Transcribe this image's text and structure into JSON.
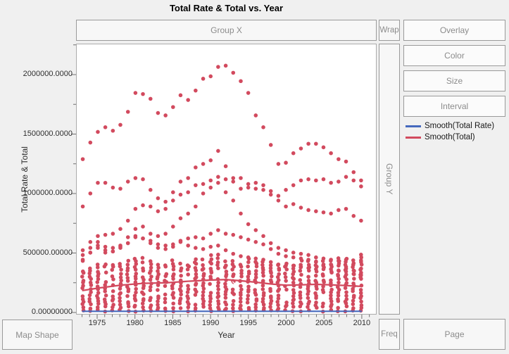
{
  "title": "Total Rate & Total vs. Year",
  "drop_zones": {
    "group_x": "Group X",
    "wrap": "Wrap",
    "group_y": "Group Y",
    "map_shape": "Map Shape",
    "freq": "Freq",
    "page": "Page"
  },
  "buttons": {
    "overlay": "Overlay",
    "color": "Color",
    "size": "Size",
    "interval": "Interval"
  },
  "legend": [
    {
      "label": "Smooth(Total Rate)",
      "color": "#4569bd"
    },
    {
      "label": "Smooth(Total)",
      "color": "#d24a5e"
    }
  ],
  "axes": {
    "x": {
      "label": "Year",
      "major_ticks": [
        1975,
        1980,
        1985,
        1990,
        1995,
        2000,
        2005,
        2010
      ],
      "minor_step": 1,
      "range": [
        1972.2,
        2012.0
      ]
    },
    "y": {
      "label": "Total Rate & Total",
      "tick_labels": [
        "0.00000000",
        "500000.00000",
        "1000000.0000",
        "1500000.0000",
        "2000000.0000"
      ],
      "tick_values": [
        0,
        500000,
        1000000,
        1500000,
        2000000
      ],
      "minor_values": [
        250000,
        750000,
        1250000,
        1750000,
        2250000
      ],
      "range": [
        0,
        2260000
      ]
    }
  },
  "chart_data": {
    "type": "scatter",
    "title": "Total Rate & Total vs. Year",
    "xlabel": "Year",
    "ylabel": "Total Rate & Total",
    "xlim": [
      1972.2,
      2012.0
    ],
    "ylim": [
      0,
      2260000
    ],
    "grid": false,
    "point_color": "#d24a5e",
    "point_radius": 2.8,
    "x": [
      1973,
      1974,
      1975,
      1976,
      1977,
      1978,
      1979,
      1980,
      1981,
      1982,
      1983,
      1984,
      1985,
      1986,
      1987,
      1988,
      1989,
      1990,
      1991,
      1992,
      1993,
      1994,
      1995,
      1996,
      1997,
      1998,
      1999,
      2000,
      2001,
      2002,
      2003,
      2004,
      2005,
      2006,
      2007,
      2008,
      2009,
      2010
    ],
    "series": [
      {
        "name": "trajectory-1",
        "values": [
          1290000,
          1430000,
          1520000,
          1560000,
          1530000,
          1580000,
          1690000,
          1850000,
          1840000,
          1800000,
          1680000,
          1660000,
          1730000,
          1830000,
          1790000,
          1870000,
          1970000,
          1990000,
          2070000,
          2080000,
          2020000,
          1950000,
          1850000,
          1660000,
          1560000,
          1410000,
          1250000,
          1260000,
          1340000,
          1380000,
          1420000,
          1420000,
          1390000,
          1340000,
          1290000,
          1270000,
          1180000,
          1060000
        ]
      },
      {
        "name": "trajectory-2",
        "values": [
          520000,
          590000,
          640000,
          650000,
          660000,
          700000,
          770000,
          870000,
          900000,
          890000,
          850000,
          870000,
          1010000,
          1100000,
          1130000,
          1220000,
          1250000,
          1280000,
          1360000,
          1230000,
          1130000,
          1040000,
          1050000,
          1040000,
          1030000,
          990000,
          980000,
          1030000,
          1070000,
          1110000,
          1120000,
          1110000,
          1120000,
          1090000,
          1100000,
          1140000,
          1110000,
          1110000
        ]
      },
      {
        "name": "trajectory-3",
        "values": [
          890000,
          1000000,
          1090000,
          1090000,
          1050000,
          1040000,
          1100000,
          1130000,
          1120000,
          1030000,
          960000,
          930000,
          940000,
          990000,
          1010000,
          1070000,
          1080000,
          1110000,
          1090000,
          1010000,
          940000,
          830000,
          740000,
          690000,
          640000,
          580000,
          540000,
          520000,
          500000,
          490000,
          480000,
          460000,
          450000,
          440000,
          430000,
          440000,
          410000,
          420000
        ]
      },
      {
        "name": "trajectory-4",
        "values": [
          430000,
          500000,
          540000,
          500000,
          510000,
          560000,
          630000,
          700000,
          720000,
          660000,
          640000,
          660000,
          720000,
          790000,
          830000,
          890000,
          1000000,
          1050000,
          1140000,
          1120000,
          1100000,
          1130000,
          1080000,
          1090000,
          1070000,
          1020000,
          940000,
          890000,
          910000,
          880000,
          860000,
          850000,
          840000,
          830000,
          860000,
          870000,
          810000,
          770000
        ]
      },
      {
        "name": "trajectory-5",
        "values": [
          440000,
          500000,
          560000,
          520000,
          510000,
          540000,
          580000,
          640000,
          620000,
          600000,
          570000,
          560000,
          570000,
          600000,
          620000,
          630000,
          620000,
          660000,
          690000,
          660000,
          650000,
          630000,
          610000,
          590000,
          570000,
          530000,
          490000,
          470000,
          460000,
          450000,
          440000,
          420000,
          400000,
          400000,
          390000,
          380000,
          350000,
          330000
        ]
      },
      {
        "name": "trajectory-6",
        "values": [
          480000,
          540000,
          590000,
          550000,
          540000,
          550000,
          580000,
          630000,
          620000,
          580000,
          540000,
          530000,
          550000,
          590000,
          560000,
          540000,
          530000,
          550000,
          560000,
          520000,
          490000,
          470000,
          460000,
          450000,
          440000,
          420000,
          400000,
          390000,
          390000,
          380000,
          370000,
          360000,
          360000,
          360000,
          350000,
          340000,
          320000,
          310000
        ]
      }
    ],
    "dense_band": {
      "description": "dense vertical columns of points per year between base and max",
      "base": 10000,
      "step": 26000,
      "jitter": 20000,
      "max_by_year": [
        360000,
        380000,
        420000,
        410000,
        400000,
        410000,
        440000,
        470000,
        460000,
        440000,
        420000,
        410000,
        430000,
        450000,
        440000,
        460000,
        460000,
        480000,
        490000,
        470000,
        450000,
        440000,
        460000,
        450000,
        440000,
        420000,
        400000,
        410000,
        420000,
        430000,
        440000,
        430000,
        440000,
        450000,
        460000,
        470000,
        440000,
        480000
      ]
    },
    "smooth_total": {
      "color": "#d24a5e",
      "x": [
        1973,
        1975,
        1978,
        1981,
        1984,
        1987,
        1990,
        1992,
        1994,
        1996,
        1998,
        2000,
        2002,
        2004,
        2006,
        2008,
        2010
      ],
      "y": [
        180000,
        200000,
        225000,
        240000,
        245000,
        258000,
        268000,
        272000,
        262000,
        250000,
        235000,
        225000,
        228000,
        232000,
        228000,
        222000,
        215000
      ]
    },
    "smooth_total_rate": {
      "color": "#4569bd",
      "x": [
        1973,
        2010
      ],
      "y": [
        4000,
        4000
      ]
    },
    "x_marker": {
      "x": 1993.2,
      "y": 237000
    }
  }
}
